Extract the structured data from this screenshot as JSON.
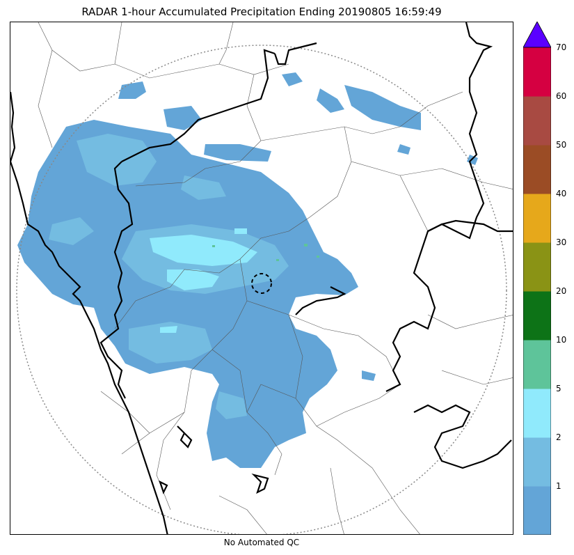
{
  "title": "RADAR 1-hour Accumulated Precipitation Ending 20190805 16:59:49",
  "caption": "No Automated QC",
  "colorbar": {
    "levels": [
      {
        "label": "",
        "color": "#63a5d7"
      },
      {
        "label": "1",
        "color": "#74bce1"
      },
      {
        "label": "2",
        "color": "#90eafc"
      },
      {
        "label": "5",
        "color": "#5ec49a"
      },
      {
        "label": "10",
        "color": "#0d7317"
      },
      {
        "label": "20",
        "color": "#8a9315"
      },
      {
        "label": "30",
        "color": "#e6a81b"
      },
      {
        "label": "40",
        "color": "#9b4c25"
      },
      {
        "label": "50",
        "color": "#a84a42"
      },
      {
        "label": "60",
        "color": "#d50041"
      }
    ],
    "top_label": "70",
    "extend_color": "#5a00ff"
  },
  "colors": {
    "precip_light": "#63a5d7",
    "precip_moderate": "#74bce1",
    "precip_heavy": "#90eafc",
    "precip_intense": "#5ec49a",
    "border_major": "#000000",
    "border_minor": "#555555",
    "range_ring": "#888888"
  }
}
